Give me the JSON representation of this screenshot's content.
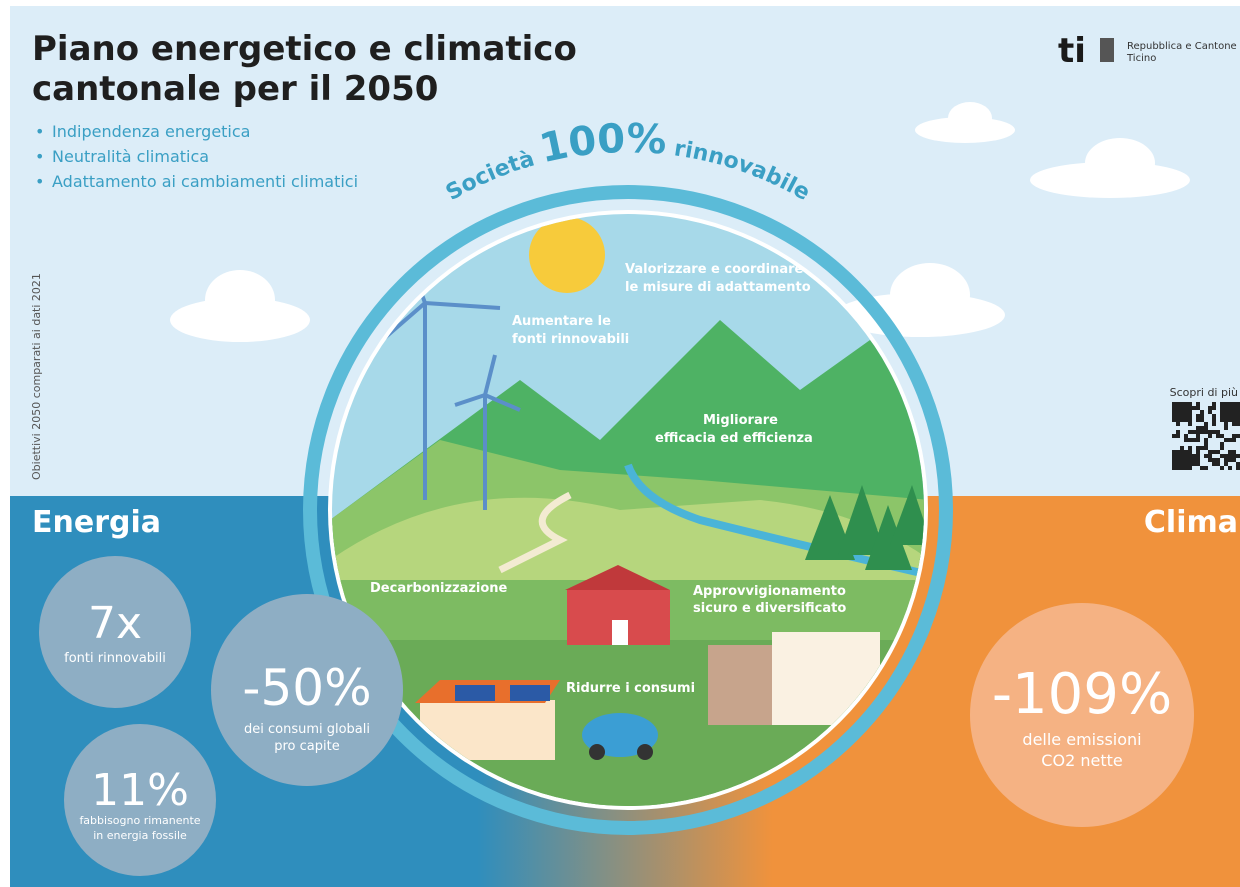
{
  "header": {
    "title_lines": [
      "Piano energetico e climatico",
      "cantonale per il 2050"
    ],
    "bullets": [
      "Indipendenza energetica",
      "Neutralità climatica",
      "Adattamento ai cambiamenti climatici"
    ],
    "logo": {
      "mark": "ti",
      "text_lines": [
        "Repubblica e Cantone",
        "Ticino"
      ]
    }
  },
  "ring": {
    "parts": [
      "Società",
      "100%",
      "rinnovabile"
    ]
  },
  "side_note": "Obiettivi 2050 comparati ai dati 2021",
  "scene_labels": {
    "adaptation": [
      "Valorizzare e coordinare",
      "le misure di adattamento"
    ],
    "renewables": [
      "Aumentare le",
      "fonti rinnovabili"
    ],
    "efficiency": [
      "Migliorare",
      "efficacia ed efficienza"
    ],
    "decarbonization": [
      "Decarbonizzazione"
    ],
    "supply": [
      "Approvvigionamento",
      "sicuro e diversificato"
    ],
    "consumption": [
      "Ridurre i consumi"
    ]
  },
  "qr": {
    "label": "Scopri di più"
  },
  "energia": {
    "title": "Energia",
    "stats": [
      {
        "value": "7x",
        "label_lines": [
          "fonti rinnovabili"
        ]
      },
      {
        "value": "-50%",
        "label_lines": [
          "dei consumi globali",
          "pro capite"
        ]
      },
      {
        "value": "11%",
        "label_lines": [
          "fabbisogno rimanente",
          "in energia fossile"
        ]
      }
    ]
  },
  "clima": {
    "title": "Clima",
    "stats": [
      {
        "value": "-109%",
        "label_lines": [
          "delle emissioni",
          "CO2 nette"
        ]
      }
    ]
  }
}
